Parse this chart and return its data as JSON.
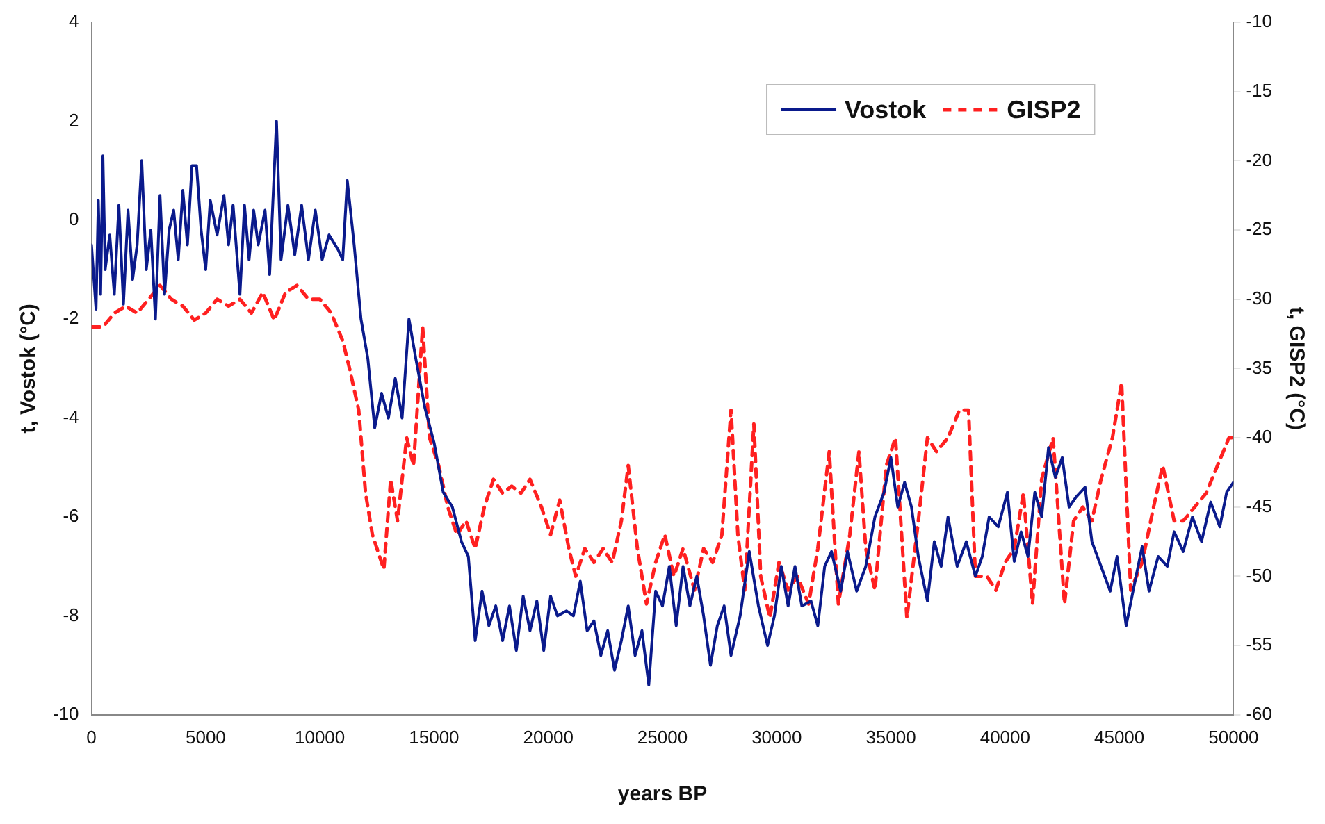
{
  "chart_data": {
    "type": "line",
    "xlabel": "years BP",
    "ylabel": "t, Vostok (°C)",
    "y2label": "t, GISP2 (°C)",
    "xlim": [
      0,
      50000
    ],
    "xticks": [
      0,
      5000,
      10000,
      15000,
      20000,
      25000,
      30000,
      35000,
      40000,
      45000,
      50000
    ],
    "ylim": [
      -10,
      4
    ],
    "yticks": [
      -10,
      -8,
      -6,
      -4,
      -2,
      0,
      2,
      4
    ],
    "y2lim": [
      -60,
      -10
    ],
    "y2ticks": [
      -60,
      -55,
      -50,
      -45,
      -40,
      -35,
      -30,
      -25,
      -20,
      -15,
      -10
    ],
    "grid": false,
    "legend": "top right",
    "marker": "none",
    "series": [
      {
        "name": "Vostok",
        "color": "#0a1a8c",
        "line_style": "solid",
        "x": [
          0,
          200,
          300,
          400,
          500,
          600,
          800,
          1000,
          1200,
          1400,
          1600,
          1800,
          2000,
          2200,
          2400,
          2600,
          2800,
          3000,
          3200,
          3400,
          3600,
          3800,
          4000,
          4200,
          4400,
          4600,
          4800,
          5000,
          5200,
          5500,
          5800,
          6000,
          6200,
          6500,
          6700,
          6900,
          7100,
          7300,
          7600,
          7800,
          8100,
          8300,
          8600,
          8900,
          9200,
          9500,
          9800,
          10100,
          10400,
          10800,
          11000,
          11200,
          11500,
          11800,
          12100,
          12400,
          12700,
          13000,
          13300,
          13600,
          13900,
          14200,
          14600,
          15000,
          15400,
          15800,
          16200,
          16500,
          16800,
          17100,
          17400,
          17700,
          18000,
          18300,
          18600,
          18900,
          19200,
          19500,
          19800,
          20100,
          20400,
          20800,
          21100,
          21400,
          21700,
          22000,
          22300,
          22600,
          22900,
          23200,
          23500,
          23800,
          24100,
          24400,
          24700,
          25000,
          25300,
          25600,
          25900,
          26200,
          26500,
          26800,
          27100,
          27400,
          27700,
          28000,
          28400,
          28800,
          29200,
          29600,
          29900,
          30200,
          30500,
          30800,
          31100,
          31500,
          31800,
          32100,
          32400,
          32800,
          33100,
          33500,
          33900,
          34300,
          34700,
          35000,
          35300,
          35600,
          35900,
          36200,
          36600,
          36900,
          37200,
          37500,
          37900,
          38300,
          38700,
          39000,
          39300,
          39700,
          40100,
          40400,
          40700,
          41000,
          41300,
          41600,
          41900,
          42200,
          42500,
          42800,
          43100,
          43500,
          43800,
          44200,
          44600,
          44900,
          45300,
          45600,
          46000,
          46300,
          46700,
          47100,
          47400,
          47800,
          48200,
          48600,
          49000,
          49400,
          49700,
          50000
        ],
        "values": [
          -0.5,
          -1.8,
          0.4,
          -1.5,
          1.3,
          -1.0,
          -0.3,
          -1.5,
          0.3,
          -1.7,
          0.2,
          -1.2,
          -0.5,
          1.2,
          -1.0,
          -0.2,
          -2.0,
          0.5,
          -1.5,
          -0.2,
          0.2,
          -0.8,
          0.6,
          -0.5,
          1.1,
          1.1,
          -0.2,
          -1.0,
          0.4,
          -0.3,
          0.5,
          -0.5,
          0.3,
          -1.5,
          0.3,
          -0.8,
          0.2,
          -0.5,
          0.2,
          -1.1,
          2.0,
          -0.8,
          0.3,
          -0.7,
          0.3,
          -0.8,
          0.2,
          -0.8,
          -0.3,
          -0.6,
          -0.8,
          0.8,
          -0.5,
          -2.0,
          -2.8,
          -4.2,
          -3.5,
          -4.0,
          -3.2,
          -4.0,
          -2.0,
          -2.8,
          -3.8,
          -4.5,
          -5.5,
          -5.8,
          -6.5,
          -6.8,
          -8.5,
          -7.5,
          -8.2,
          -7.8,
          -8.5,
          -7.8,
          -8.7,
          -7.6,
          -8.3,
          -7.7,
          -8.7,
          -7.6,
          -8.0,
          -7.9,
          -8.0,
          -7.3,
          -8.3,
          -8.1,
          -8.8,
          -8.3,
          -9.1,
          -8.5,
          -7.8,
          -8.8,
          -8.3,
          -9.4,
          -7.5,
          -7.8,
          -7.0,
          -8.2,
          -7.0,
          -7.8,
          -7.2,
          -8.0,
          -9.0,
          -8.2,
          -7.8,
          -8.8,
          -8.0,
          -6.7,
          -7.8,
          -8.6,
          -8.0,
          -7.0,
          -7.8,
          -7.0,
          -7.8,
          -7.7,
          -8.2,
          -7.0,
          -6.7,
          -7.5,
          -6.7,
          -7.5,
          -7.0,
          -6.0,
          -5.5,
          -4.8,
          -5.8,
          -5.3,
          -5.8,
          -6.8,
          -7.7,
          -6.5,
          -7.0,
          -6.0,
          -7.0,
          -6.5,
          -7.2,
          -6.8,
          -6.0,
          -6.2,
          -5.5,
          -6.9,
          -6.3,
          -6.8,
          -5.5,
          -6.0,
          -4.6,
          -5.2,
          -4.8,
          -5.8,
          -5.6,
          -5.4,
          -6.5,
          -7.0,
          -7.5,
          -6.8,
          -8.2,
          -7.5,
          -6.6,
          -7.5,
          -6.8,
          -7.0,
          -6.3,
          -6.7,
          -6.0,
          -6.5,
          -5.7,
          -6.2,
          -5.5,
          -5.3
        ]
      },
      {
        "name": "GISP2",
        "color": "#ff2020",
        "line_style": "dashed",
        "axis": "y2",
        "x": [
          0,
          500,
          1000,
          1500,
          2000,
          2500,
          3000,
          3500,
          4000,
          4500,
          5000,
          5500,
          6000,
          6500,
          7000,
          7500,
          8000,
          8500,
          9000,
          9500,
          10000,
          10500,
          11000,
          11300,
          11700,
          12000,
          12300,
          12800,
          13100,
          13400,
          13800,
          14100,
          14500,
          14800,
          15200,
          15600,
          16000,
          16400,
          16800,
          17200,
          17600,
          18000,
          18400,
          18800,
          19200,
          19700,
          20100,
          20500,
          20900,
          21200,
          21600,
          22000,
          22400,
          22800,
          23200,
          23500,
          23900,
          24300,
          24700,
          25100,
          25500,
          25900,
          26400,
          26800,
          27200,
          27600,
          28000,
          28300,
          28600,
          29000,
          29300,
          29700,
          30100,
          30500,
          30900,
          31400,
          31800,
          32300,
          32700,
          33200,
          33600,
          33900,
          34300,
          34800,
          35200,
          35700,
          36200,
          36600,
          37000,
          37500,
          38000,
          38400,
          38700,
          39200,
          39600,
          40000,
          40400,
          40800,
          41200,
          41600,
          42100,
          42600,
          43000,
          43400,
          43800,
          44200,
          44700,
          45100,
          45500,
          46000,
          46500,
          46900,
          47400,
          47800,
          48300,
          48800,
          49300,
          49800,
          50000
        ],
        "values": [
          -32,
          -32,
          -31,
          -30.5,
          -31,
          -30,
          -29,
          -30,
          -30.5,
          -31.5,
          -31,
          -30,
          -30.5,
          -30,
          -31,
          -29.5,
          -31.5,
          -29.5,
          -29,
          -30,
          -30,
          -31,
          -33,
          -35,
          -38,
          -44,
          -47,
          -49.5,
          -43,
          -46,
          -40,
          -42,
          -32,
          -40,
          -42,
          -45,
          -47,
          -46,
          -48,
          -45,
          -43,
          -44,
          -43.5,
          -44,
          -43,
          -45,
          -47,
          -44.5,
          -48,
          -50,
          -48,
          -49,
          -48,
          -49,
          -46,
          -42,
          -48,
          -52,
          -49,
          -47,
          -50,
          -48,
          -51,
          -48,
          -49,
          -47,
          -38,
          -47,
          -51,
          -39,
          -50,
          -53,
          -49,
          -51,
          -50,
          -52,
          -48,
          -41,
          -52,
          -47,
          -41,
          -48,
          -51,
          -42,
          -40,
          -53,
          -46,
          -40,
          -41,
          -40,
          -38,
          -38,
          -50,
          -50,
          -51,
          -49,
          -48,
          -44,
          -52,
          -43,
          -40,
          -52,
          -46,
          -45,
          -46,
          -43,
          -40,
          -36,
          -51,
          -49,
          -45,
          -42,
          -46,
          -46,
          -45,
          -44,
          -42,
          -40,
          -40
        ]
      }
    ]
  }
}
